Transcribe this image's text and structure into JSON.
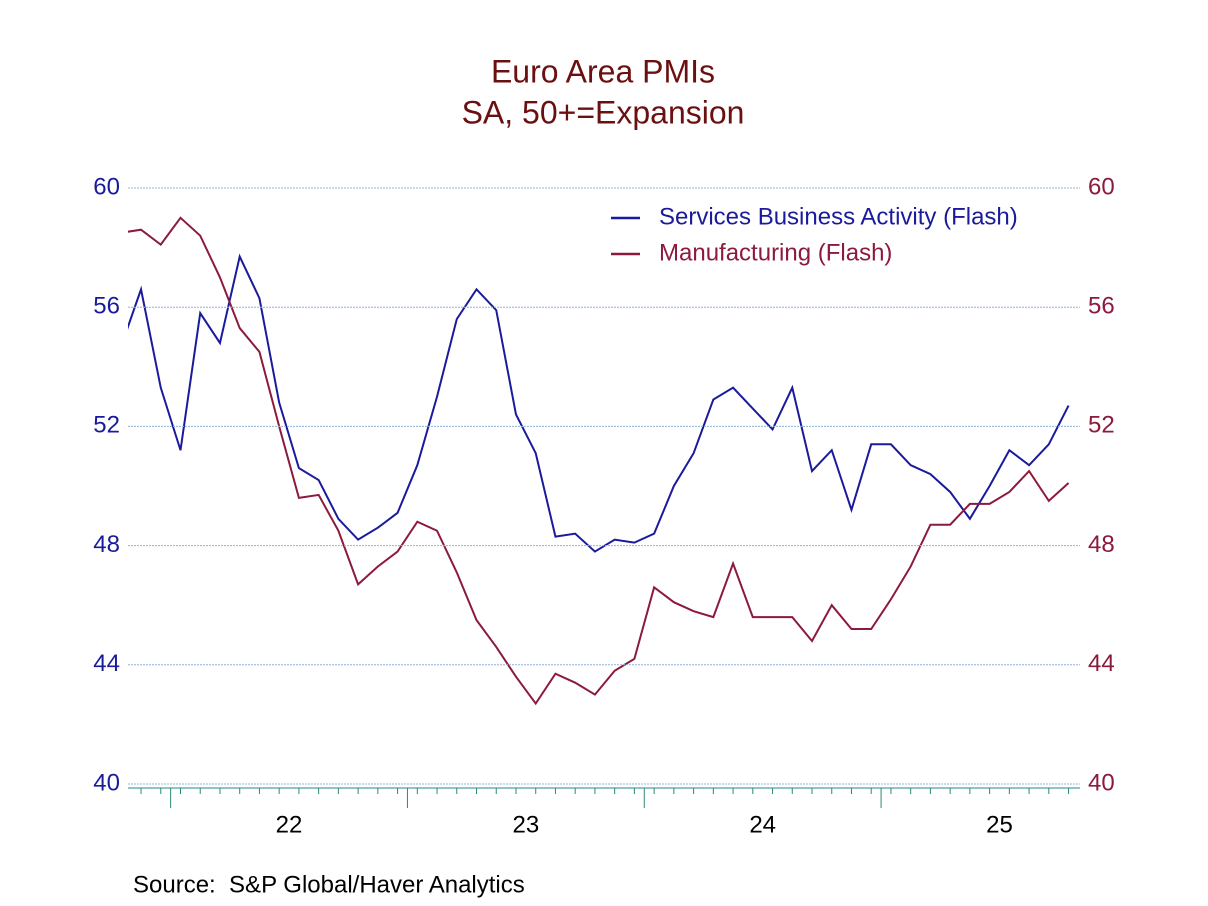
{
  "chart_data": {
    "type": "line",
    "title": "Euro Area PMIs",
    "subtitle": "SA, 50+=Expansion",
    "source": "Source:  S&P Global/Haver Analytics",
    "x": [
      2021.7917,
      2021.875,
      2021.9583,
      2022.0417,
      2022.125,
      2022.2083,
      2022.2917,
      2022.375,
      2022.4583,
      2022.5417,
      2022.625,
      2022.7083,
      2022.7917,
      2022.875,
      2022.9583,
      2023.0417,
      2023.125,
      2023.2083,
      2023.2917,
      2023.375,
      2023.4583,
      2023.5417,
      2023.625,
      2023.7083,
      2023.7917,
      2023.875,
      2023.9583,
      2024.0417,
      2024.125,
      2024.2083,
      2024.2917,
      2024.375,
      2024.4583,
      2024.5417,
      2024.625,
      2024.7083,
      2024.7917,
      2024.875,
      2024.9583,
      2025.0417,
      2025.125,
      2025.2083,
      2025.2917,
      2025.375,
      2025.4583,
      2025.5417,
      2025.625,
      2025.7083,
      2025.7917
    ],
    "series": [
      {
        "name": "Services Business Activity (Flash)",
        "color": "#1a1a9c",
        "values": [
          54.7,
          56.6,
          53.3,
          51.2,
          55.8,
          54.8,
          57.7,
          56.3,
          52.8,
          50.6,
          50.2,
          48.9,
          48.2,
          48.6,
          49.1,
          50.7,
          53.0,
          55.6,
          56.6,
          55.9,
          52.4,
          51.1,
          48.3,
          48.4,
          47.8,
          48.2,
          48.1,
          48.4,
          50.0,
          51.1,
          52.9,
          53.3,
          52.6,
          51.9,
          53.3,
          50.5,
          51.2,
          49.2,
          51.4,
          51.4,
          50.7,
          50.4,
          49.8,
          48.9,
          50.0,
          51.2,
          50.7,
          51.4,
          52.7
        ]
      },
      {
        "name": "Manufacturing (Flash)",
        "color": "#8c1a3c",
        "axis": "y2",
        "values": [
          58.5,
          58.6,
          58.1,
          59.0,
          58.4,
          57.0,
          55.3,
          54.5,
          52.0,
          49.6,
          49.7,
          48.5,
          46.7,
          47.3,
          47.8,
          48.8,
          48.5,
          47.1,
          45.5,
          44.6,
          43.6,
          42.7,
          43.7,
          43.4,
          43.0,
          43.8,
          44.2,
          46.6,
          46.1,
          45.8,
          45.6,
          47.4,
          45.6,
          45.6,
          45.6,
          44.8,
          46.0,
          45.2,
          45.2,
          46.2,
          47.3,
          48.7,
          48.7,
          49.4,
          49.4,
          49.8,
          50.5,
          49.5,
          50.1
        ]
      }
    ],
    "xlim": [
      2021.82,
      2025.84
    ],
    "xticks": [
      {
        "value": 2022.5,
        "label": "22"
      },
      {
        "value": 2023.5,
        "label": "23"
      },
      {
        "value": 2024.5,
        "label": "24"
      },
      {
        "value": 2025.5,
        "label": "25"
      }
    ],
    "xmajorticks": [
      2022,
      2023,
      2024,
      2025
    ],
    "ylim": [
      40,
      60
    ],
    "yticks": [
      40,
      44,
      48,
      52,
      56,
      60
    ],
    "y2lim": [
      40,
      60
    ],
    "y2ticks": [
      40,
      44,
      48,
      52,
      56,
      60
    ],
    "grid": true,
    "legend": "upper right"
  }
}
